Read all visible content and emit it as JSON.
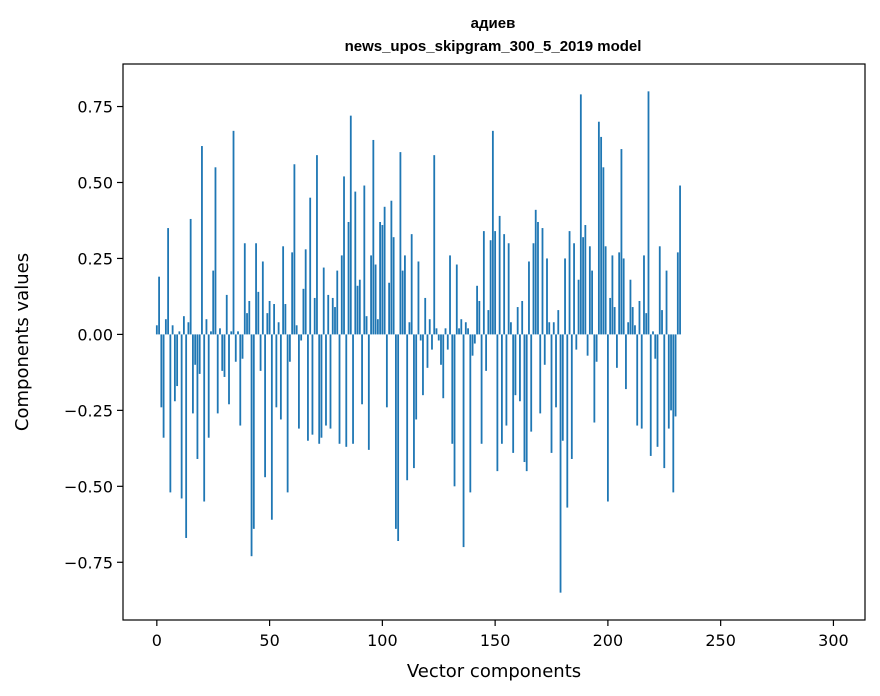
{
  "chart_data": {
    "type": "bar",
    "title": "адиев",
    "subtitle": "news_upos_skipgram_300_5_2019 model",
    "xlabel": "Vector components",
    "ylabel": "Components values",
    "xlim": [
      -15,
      314
    ],
    "ylim": [
      -0.94,
      0.89
    ],
    "xticks": [
      0,
      50,
      100,
      150,
      200,
      250,
      300
    ],
    "yticks": [
      -0.75,
      -0.5,
      -0.25,
      0.0,
      0.25,
      0.5,
      0.75
    ],
    "xtick_labels": [
      "0",
      "50",
      "100",
      "150",
      "200",
      "250",
      "300"
    ],
    "ytick_labels": [
      "−0.75",
      "−0.50",
      "−0.25",
      "0.00",
      "0.25",
      "0.50",
      "0.75"
    ],
    "bar_color": "#1f77b4",
    "values": [
      0.03,
      0.19,
      -0.24,
      -0.34,
      0.05,
      0.35,
      -0.52,
      0.03,
      -0.22,
      -0.17,
      0.01,
      -0.54,
      0.06,
      -0.67,
      0.04,
      0.38,
      -0.26,
      -0.1,
      -0.41,
      -0.13,
      0.62,
      -0.55,
      0.05,
      -0.34,
      0.01,
      0.21,
      0.55,
      -0.26,
      0.02,
      -0.12,
      -0.14,
      0.13,
      -0.23,
      0.01,
      0.67,
      -0.09,
      0.01,
      -0.3,
      -0.08,
      0.3,
      0.07,
      0.11,
      -0.73,
      -0.64,
      0.3,
      0.14,
      -0.12,
      0.24,
      -0.47,
      0.07,
      0.11,
      -0.61,
      0.1,
      -0.24,
      0.04,
      -0.28,
      0.29,
      0.1,
      -0.52,
      -0.09,
      0.27,
      0.56,
      0.03,
      -0.31,
      -0.02,
      0.15,
      0.28,
      -0.35,
      0.45,
      -0.33,
      0.12,
      0.59,
      -0.36,
      -0.34,
      0.22,
      -0.3,
      0.13,
      -0.31,
      0.12,
      0.09,
      0.21,
      -0.36,
      0.26,
      0.52,
      -0.37,
      0.37,
      0.72,
      -0.36,
      0.47,
      0.16,
      0.18,
      -0.23,
      0.49,
      0.06,
      -0.38,
      0.26,
      0.64,
      0.23,
      0.05,
      0.37,
      0.36,
      0.42,
      -0.24,
      0.17,
      0.44,
      0.32,
      -0.64,
      -0.68,
      0.6,
      0.21,
      0.26,
      -0.48,
      0.04,
      0.33,
      -0.44,
      -0.28,
      0.24,
      -0.02,
      -0.2,
      0.12,
      -0.11,
      0.05,
      -0.05,
      0.59,
      0.02,
      -0.02,
      -0.1,
      -0.21,
      0.02,
      -0.05,
      0.26,
      -0.36,
      -0.5,
      0.23,
      0.02,
      0.05,
      -0.7,
      0.04,
      0.02,
      -0.52,
      -0.07,
      -0.03,
      0.16,
      0.11,
      -0.36,
      0.34,
      -0.12,
      0.08,
      0.31,
      0.67,
      0.34,
      -0.45,
      0.39,
      -0.36,
      0.33,
      -0.3,
      0.3,
      0.04,
      -0.39,
      -0.2,
      0.09,
      -0.22,
      0.11,
      -0.42,
      -0.45,
      0.24,
      -0.32,
      0.3,
      0.41,
      0.37,
      -0.26,
      0.35,
      -0.1,
      0.25,
      0.04,
      -0.39,
      0.04,
      -0.24,
      0.08,
      -0.85,
      -0.35,
      0.25,
      -0.57,
      0.34,
      -0.41,
      0.3,
      -0.05,
      0.18,
      0.79,
      0.32,
      0.36,
      -0.07,
      0.29,
      0.21,
      -0.29,
      -0.09,
      0.7,
      0.65,
      0.55,
      0.29,
      -0.55,
      0.12,
      0.26,
      0.09,
      -0.11,
      0.27,
      0.61,
      0.25,
      -0.18,
      0.04,
      0.18,
      0.09,
      0.03,
      -0.3,
      0.11,
      -0.31,
      0.26,
      0.07,
      0.8,
      -0.4,
      0.01,
      -0.08,
      -0.37,
      0.29,
      0.08,
      -0.44,
      0.21,
      -0.31,
      -0.25,
      -0.52,
      -0.27,
      0.27,
      0.49
    ]
  }
}
